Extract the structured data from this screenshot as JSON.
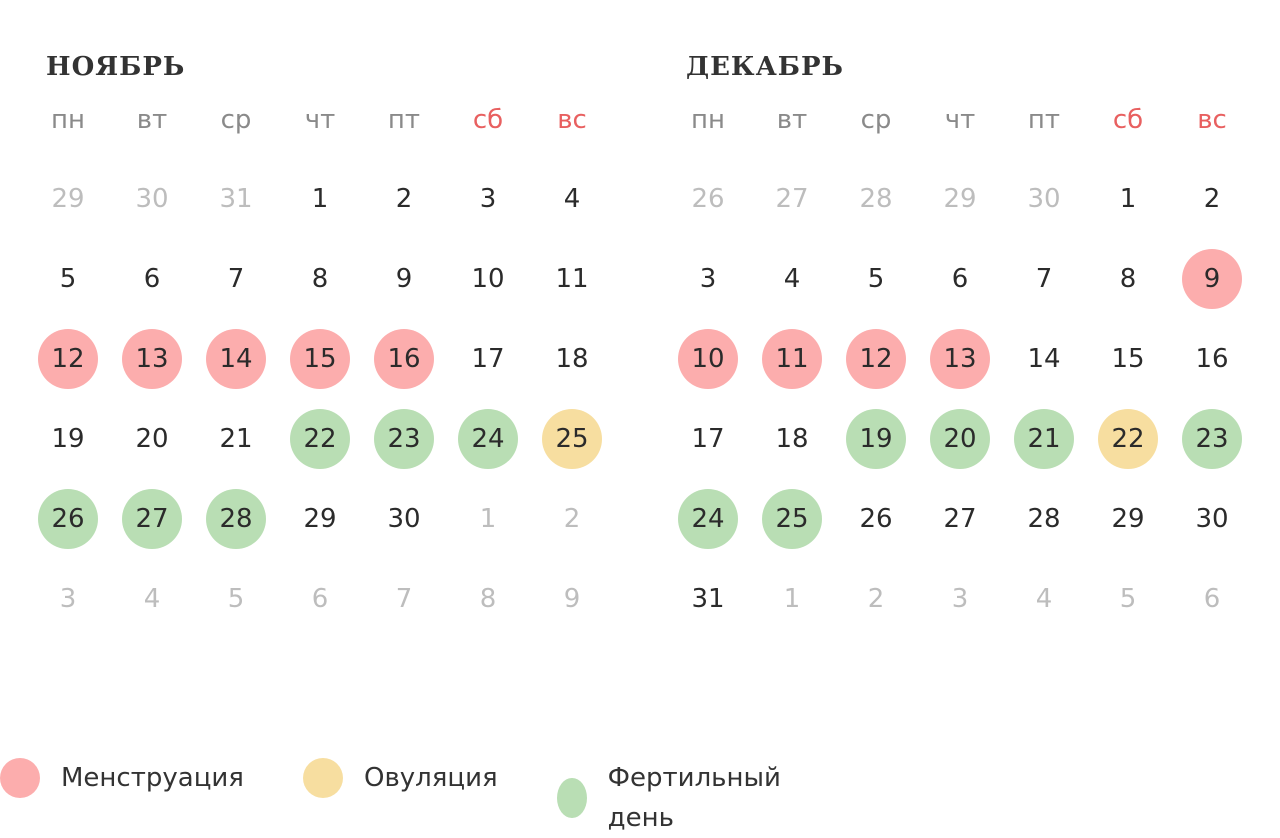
{
  "colors": {
    "menstruation": "#fcadad",
    "ovulation": "#f7dea0",
    "fertile": "#b9deb4",
    "weekend_label": "#e86060"
  },
  "weekdays": [
    "пн",
    "вт",
    "ср",
    "чт",
    "пт",
    "сб",
    "вс"
  ],
  "months": [
    {
      "title": "НОЯБРЬ",
      "weeks": [
        [
          {
            "d": "29",
            "t": "other"
          },
          {
            "d": "30",
            "t": "other"
          },
          {
            "d": "31",
            "t": "other"
          },
          {
            "d": "1",
            "t": ""
          },
          {
            "d": "2",
            "t": ""
          },
          {
            "d": "3",
            "t": ""
          },
          {
            "d": "4",
            "t": ""
          }
        ],
        [
          {
            "d": "5",
            "t": ""
          },
          {
            "d": "6",
            "t": ""
          },
          {
            "d": "7",
            "t": ""
          },
          {
            "d": "8",
            "t": ""
          },
          {
            "d": "9",
            "t": ""
          },
          {
            "d": "10",
            "t": ""
          },
          {
            "d": "11",
            "t": ""
          }
        ],
        [
          {
            "d": "12",
            "t": "mens"
          },
          {
            "d": "13",
            "t": "mens"
          },
          {
            "d": "14",
            "t": "mens"
          },
          {
            "d": "15",
            "t": "mens"
          },
          {
            "d": "16",
            "t": "mens"
          },
          {
            "d": "17",
            "t": ""
          },
          {
            "d": "18",
            "t": ""
          }
        ],
        [
          {
            "d": "19",
            "t": ""
          },
          {
            "d": "20",
            "t": ""
          },
          {
            "d": "21",
            "t": ""
          },
          {
            "d": "22",
            "t": "fert"
          },
          {
            "d": "23",
            "t": "fert"
          },
          {
            "d": "24",
            "t": "fert"
          },
          {
            "d": "25",
            "t": "ovul"
          }
        ],
        [
          {
            "d": "26",
            "t": "fert"
          },
          {
            "d": "27",
            "t": "fert"
          },
          {
            "d": "28",
            "t": "fert"
          },
          {
            "d": "29",
            "t": ""
          },
          {
            "d": "30",
            "t": ""
          },
          {
            "d": "1",
            "t": "other"
          },
          {
            "d": "2",
            "t": "other"
          }
        ],
        [
          {
            "d": "3",
            "t": "other"
          },
          {
            "d": "4",
            "t": "other"
          },
          {
            "d": "5",
            "t": "other"
          },
          {
            "d": "6",
            "t": "other"
          },
          {
            "d": "7",
            "t": "other"
          },
          {
            "d": "8",
            "t": "other"
          },
          {
            "d": "9",
            "t": "other"
          }
        ]
      ]
    },
    {
      "title": "ДЕКАБРЬ",
      "weeks": [
        [
          {
            "d": "26",
            "t": "other"
          },
          {
            "d": "27",
            "t": "other"
          },
          {
            "d": "28",
            "t": "other"
          },
          {
            "d": "29",
            "t": "other"
          },
          {
            "d": "30",
            "t": "other"
          },
          {
            "d": "1",
            "t": ""
          },
          {
            "d": "2",
            "t": ""
          }
        ],
        [
          {
            "d": "3",
            "t": ""
          },
          {
            "d": "4",
            "t": ""
          },
          {
            "d": "5",
            "t": ""
          },
          {
            "d": "6",
            "t": ""
          },
          {
            "d": "7",
            "t": ""
          },
          {
            "d": "8",
            "t": ""
          },
          {
            "d": "9",
            "t": "mens"
          }
        ],
        [
          {
            "d": "10",
            "t": "mens"
          },
          {
            "d": "11",
            "t": "mens"
          },
          {
            "d": "12",
            "t": "mens"
          },
          {
            "d": "13",
            "t": "mens"
          },
          {
            "d": "14",
            "t": ""
          },
          {
            "d": "15",
            "t": ""
          },
          {
            "d": "16",
            "t": ""
          }
        ],
        [
          {
            "d": "17",
            "t": ""
          },
          {
            "d": "18",
            "t": ""
          },
          {
            "d": "19",
            "t": "fert"
          },
          {
            "d": "20",
            "t": "fert"
          },
          {
            "d": "21",
            "t": "fert"
          },
          {
            "d": "22",
            "t": "ovul"
          },
          {
            "d": "23",
            "t": "fert"
          }
        ],
        [
          {
            "d": "24",
            "t": "fert"
          },
          {
            "d": "25",
            "t": "fert"
          },
          {
            "d": "26",
            "t": ""
          },
          {
            "d": "27",
            "t": ""
          },
          {
            "d": "28",
            "t": ""
          },
          {
            "d": "29",
            "t": ""
          },
          {
            "d": "30",
            "t": ""
          }
        ],
        [
          {
            "d": "31",
            "t": ""
          },
          {
            "d": "1",
            "t": "other"
          },
          {
            "d": "2",
            "t": "other"
          },
          {
            "d": "3",
            "t": "other"
          },
          {
            "d": "4",
            "t": "other"
          },
          {
            "d": "5",
            "t": "other"
          },
          {
            "d": "6",
            "t": "other"
          }
        ]
      ]
    }
  ],
  "legend": [
    {
      "key": "mens",
      "label": "Менструация"
    },
    {
      "key": "ovul",
      "label": "Овуляция"
    },
    {
      "key": "fert",
      "label": "Фертильный день"
    }
  ]
}
